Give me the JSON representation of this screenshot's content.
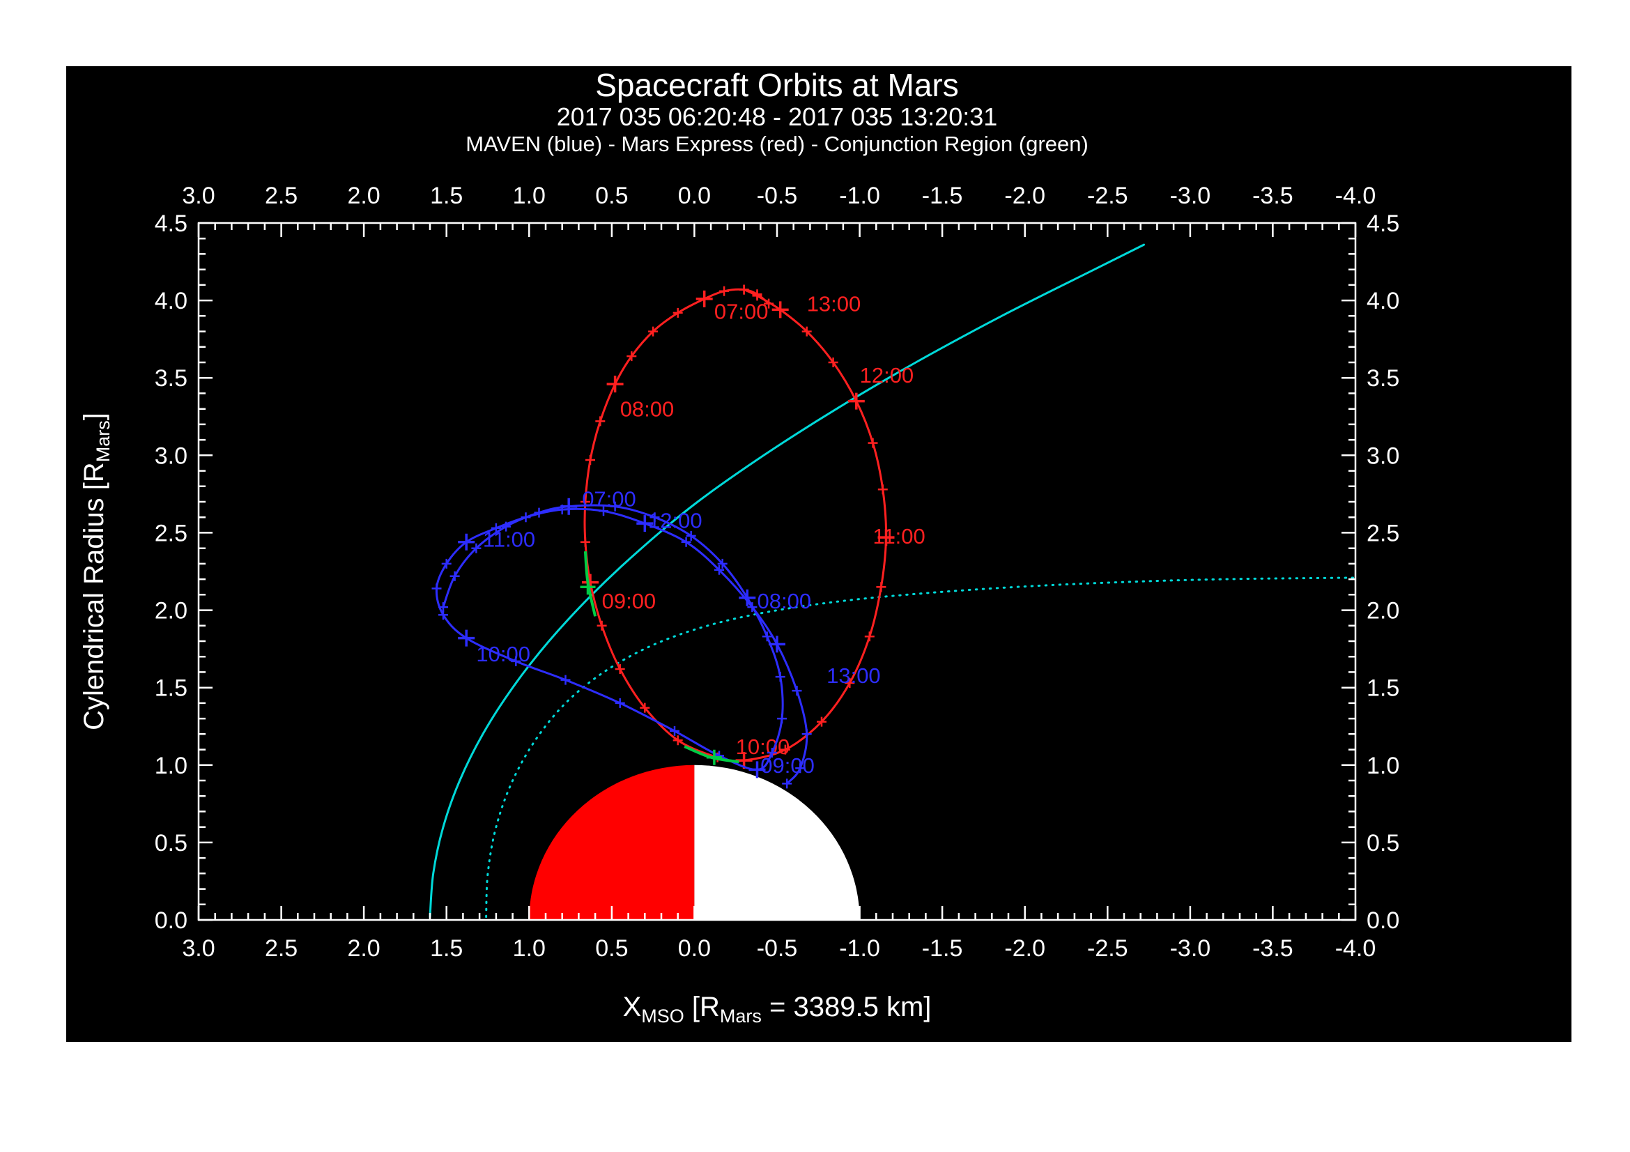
{
  "page": {
    "background": "#ffffff",
    "plot_background": "#000000",
    "frame_color": "#ffffff"
  },
  "header": {
    "title": "Spacecraft Orbits at Mars",
    "subtitle": "2017 035 06:20:48 - 2017 035 13:20:31",
    "legend": "MAVEN (blue) - Mars Express (red) - Conjunction Region (green)"
  },
  "axes": {
    "x": {
      "label_parts": [
        "X",
        "MSO",
        " [R",
        "Mars",
        " = 3389.5 km]"
      ],
      "range": [
        3.0,
        -4.0
      ],
      "minor_step": 0.1,
      "tick_labels": [
        "3.0",
        "2.5",
        "2.0",
        "1.5",
        "1.0",
        "0.5",
        "0.0",
        "-0.5",
        "-1.0",
        "-1.5",
        "-2.0",
        "-2.5",
        "-3.0",
        "-3.5",
        "-4.0"
      ]
    },
    "y": {
      "label_parts": [
        "Cylendrical Radius [R",
        "Mars",
        "]"
      ],
      "range": [
        0.0,
        4.5
      ],
      "minor_step": 0.1,
      "tick_labels": [
        "0.0",
        "0.5",
        "1.0",
        "1.5",
        "2.0",
        "2.5",
        "3.0",
        "3.5",
        "4.0",
        "4.5"
      ]
    }
  },
  "chart_data": {
    "type": "line",
    "title": "Spacecraft Orbits at Mars",
    "subtitle": "2017 035 06:20:48 - 2017 035 13:20:31",
    "xlabel": "X_MSO [R_Mars = 3389.5 km]",
    "ylabel": "Cylendrical Radius [R_Mars]",
    "xlim": [
      3.0,
      -4.0
    ],
    "ylim": [
      0.0,
      4.5
    ],
    "grid": false,
    "mars": {
      "radius": 1.0,
      "dayside_color": "#ff0000",
      "nightside_color": "#ffffff"
    },
    "series": [
      {
        "id": "bow-shock",
        "name": "boundary (solid cyan)",
        "color": "#00d9d9",
        "style": "solid",
        "width": 3,
        "points": [
          [
            1.6,
            0.02
          ],
          [
            1.58,
            0.3
          ],
          [
            1.52,
            0.6
          ],
          [
            1.42,
            0.9
          ],
          [
            1.28,
            1.2
          ],
          [
            1.1,
            1.5
          ],
          [
            0.88,
            1.8
          ],
          [
            0.62,
            2.1
          ],
          [
            0.32,
            2.4
          ],
          [
            -0.02,
            2.7
          ],
          [
            -0.42,
            3.0
          ],
          [
            -0.86,
            3.3
          ],
          [
            -1.34,
            3.6
          ],
          [
            -1.86,
            3.9
          ],
          [
            -2.42,
            4.2
          ],
          [
            -2.72,
            4.36
          ]
        ]
      },
      {
        "id": "pileup-boundary",
        "name": "boundary (dotted cyan)",
        "color": "#00d9d9",
        "style": "dotted",
        "width": 3,
        "points": [
          [
            1.26,
            0.02
          ],
          [
            1.25,
            0.3
          ],
          [
            1.2,
            0.6
          ],
          [
            1.1,
            0.9
          ],
          [
            0.95,
            1.18
          ],
          [
            0.76,
            1.42
          ],
          [
            0.52,
            1.62
          ],
          [
            0.24,
            1.78
          ],
          [
            -0.08,
            1.9
          ],
          [
            -0.45,
            1.99
          ],
          [
            -0.9,
            2.06
          ],
          [
            -1.4,
            2.11
          ],
          [
            -1.95,
            2.15
          ],
          [
            -2.55,
            2.18
          ],
          [
            -3.2,
            2.2
          ],
          [
            -4.0,
            2.21
          ]
        ]
      },
      {
        "id": "mex",
        "name": "Mars Express",
        "color": "#ff2020",
        "style": "solid",
        "width": 3,
        "marker": "plus",
        "points": [
          [
            -0.45,
            3.98
          ],
          [
            -0.38,
            4.04
          ],
          [
            -0.3,
            4.07
          ],
          [
            -0.18,
            4.06
          ],
          [
            -0.06,
            4.01
          ],
          [
            0.1,
            3.92
          ],
          [
            0.25,
            3.8
          ],
          [
            0.38,
            3.64
          ],
          [
            0.48,
            3.46
          ],
          [
            0.57,
            3.22
          ],
          [
            0.63,
            2.97
          ],
          [
            0.66,
            2.7
          ],
          [
            0.66,
            2.44
          ],
          [
            0.63,
            2.18
          ],
          [
            0.56,
            1.9
          ],
          [
            0.45,
            1.62
          ],
          [
            0.3,
            1.37
          ],
          [
            0.1,
            1.16
          ],
          [
            -0.14,
            1.05
          ],
          [
            -0.3,
            1.03
          ],
          [
            -0.55,
            1.1
          ],
          [
            -0.77,
            1.28
          ],
          [
            -0.94,
            1.53
          ],
          [
            -1.06,
            1.83
          ],
          [
            -1.13,
            2.15
          ],
          [
            -1.16,
            2.47
          ],
          [
            -1.14,
            2.78
          ],
          [
            -1.08,
            3.08
          ],
          [
            -0.98,
            3.35
          ],
          [
            -0.84,
            3.6
          ],
          [
            -0.68,
            3.8
          ],
          [
            -0.52,
            3.94
          ],
          [
            -0.38,
            4.03
          ],
          [
            -0.3,
            4.07
          ]
        ],
        "hour_marks": [
          {
            "t": "07:00",
            "x": -0.06,
            "y": 4.01
          },
          {
            "t": "08:00",
            "x": 0.48,
            "y": 3.46
          },
          {
            "t": "09:00",
            "x": 0.63,
            "y": 2.18
          },
          {
            "t": "10:00",
            "x": -0.3,
            "y": 1.03
          },
          {
            "t": "11:00",
            "x": -1.16,
            "y": 2.47
          },
          {
            "t": "12:00",
            "x": -0.98,
            "y": 3.35
          },
          {
            "t": "13:00",
            "x": -0.52,
            "y": 3.94
          }
        ],
        "labels": [
          {
            "t": "07:00",
            "x": -0.12,
            "y": 3.93
          },
          {
            "t": "08:00",
            "x": 0.45,
            "y": 3.3
          },
          {
            "t": "09:00",
            "x": 0.56,
            "y": 2.06
          },
          {
            "t": "10:00",
            "x": -0.25,
            "y": 1.12
          },
          {
            "t": "11:00",
            "x": -1.08,
            "y": 2.48
          },
          {
            "t": "12:00",
            "x": -1.0,
            "y": 3.52
          },
          {
            "t": "13:00",
            "x": -0.68,
            "y": 3.98
          }
        ]
      },
      {
        "id": "maven",
        "name": "MAVEN",
        "color": "#2d2dff",
        "style": "solid",
        "width": 3,
        "marker": "plus",
        "points": [
          [
            1.52,
            2.02
          ],
          [
            1.45,
            2.22
          ],
          [
            1.32,
            2.4
          ],
          [
            1.14,
            2.54
          ],
          [
            0.94,
            2.63
          ],
          [
            0.76,
            2.67
          ],
          [
            0.48,
            2.67
          ],
          [
            0.24,
            2.6
          ],
          [
            0.02,
            2.48
          ],
          [
            -0.17,
            2.3
          ],
          [
            -0.32,
            2.08
          ],
          [
            -0.44,
            1.83
          ],
          [
            -0.52,
            1.57
          ],
          [
            -0.53,
            1.3
          ],
          [
            -0.47,
            1.08
          ],
          [
            -0.38,
            0.97
          ],
          [
            -0.15,
            1.06
          ],
          [
            0.12,
            1.22
          ],
          [
            0.45,
            1.4
          ],
          [
            0.78,
            1.55
          ],
          [
            1.08,
            1.67
          ],
          [
            1.38,
            1.82
          ],
          [
            1.52,
            1.97
          ],
          [
            1.56,
            2.14
          ],
          [
            1.5,
            2.3
          ],
          [
            1.38,
            2.44
          ],
          [
            1.2,
            2.53
          ],
          [
            1.02,
            2.6
          ],
          [
            0.8,
            2.65
          ],
          [
            0.55,
            2.64
          ],
          [
            0.3,
            2.56
          ],
          [
            0.05,
            2.44
          ],
          [
            -0.15,
            2.26
          ],
          [
            -0.35,
            2.02
          ],
          [
            -0.5,
            1.78
          ],
          [
            -0.62,
            1.48
          ],
          [
            -0.68,
            1.2
          ],
          [
            -0.64,
            0.98
          ],
          [
            -0.56,
            0.88
          ]
        ],
        "hour_marks": [
          {
            "t": "07:00",
            "x": 0.76,
            "y": 2.67
          },
          {
            "t": "08:00",
            "x": -0.32,
            "y": 2.08
          },
          {
            "t": "09:00",
            "x": -0.38,
            "y": 0.97
          },
          {
            "t": "10:00",
            "x": 1.38,
            "y": 1.82
          },
          {
            "t": "11:00",
            "x": 1.38,
            "y": 2.44
          },
          {
            "t": "12:00",
            "x": 0.3,
            "y": 2.56
          },
          {
            "t": "13:00",
            "x": -0.5,
            "y": 1.78
          }
        ],
        "labels": [
          {
            "t": "07:00",
            "x": 0.68,
            "y": 2.72
          },
          {
            "t": "08:00",
            "x": -0.38,
            "y": 2.06
          },
          {
            "t": "09:00",
            "x": -0.4,
            "y": 1.0
          },
          {
            "t": "10:00",
            "x": 1.32,
            "y": 1.72
          },
          {
            "t": "11:00",
            "x": 1.28,
            "y": 2.46
          },
          {
            "t": "12:00",
            "x": 0.28,
            "y": 2.58
          },
          {
            "t": "13:00",
            "x": -0.8,
            "y": 1.58
          }
        ]
      },
      {
        "id": "conjunction",
        "name": "Conjunction Region",
        "color": "#00cc44",
        "style": "solid",
        "width": 4,
        "segments": [
          [
            [
              0.66,
              2.38
            ],
            [
              0.645,
              2.18
            ],
            [
              0.6,
              1.96
            ]
          ],
          [
            [
              0.06,
              1.12
            ],
            [
              -0.1,
              1.05
            ],
            [
              -0.27,
              1.02
            ]
          ]
        ],
        "marks": [
          [
            0.645,
            2.15
          ],
          [
            -0.12,
            1.05
          ]
        ]
      }
    ]
  }
}
